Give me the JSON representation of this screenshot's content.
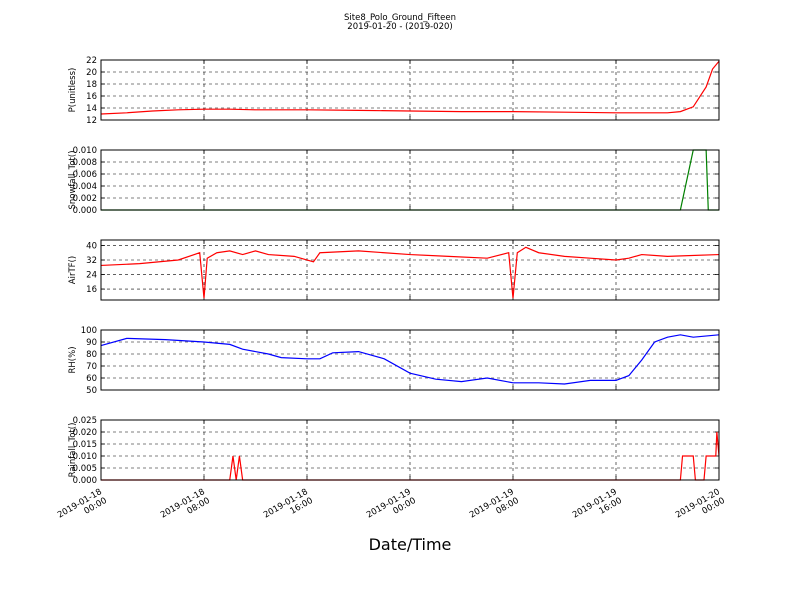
{
  "title": "Site8_Polo_Ground_Fifteen",
  "subtitle": "2019-01-20 - (2019-020)",
  "xlabel": "Date/Time",
  "colors": {
    "red": "#ff0000",
    "green": "#008000",
    "blue": "#0000ff"
  },
  "x_ticks": [
    {
      "line1": "2019-01-18",
      "line2": "00:00"
    },
    {
      "line1": "2019-01-18",
      "line2": "08:00"
    },
    {
      "line1": "2019-01-18",
      "line2": "16:00"
    },
    {
      "line1": "2019-01-19",
      "line2": "00:00"
    },
    {
      "line1": "2019-01-19",
      "line2": "08:00"
    },
    {
      "line1": "2019-01-19",
      "line2": "16:00"
    },
    {
      "line1": "2019-01-20",
      "line2": "00:00"
    }
  ],
  "chart_data": [
    {
      "type": "line",
      "ylabel": "P(unitless)",
      "ylim": [
        12,
        22
      ],
      "yticks": [
        "12",
        "14",
        "16",
        "18",
        "20",
        "22"
      ],
      "x_range": [
        "2019-01-18 00:00",
        "2019-01-20 00:00"
      ],
      "grid": true,
      "color": "#ff0000",
      "points": [
        [
          "2019-01-18 00:00",
          13.0
        ],
        [
          "2019-01-18 02:00",
          13.2
        ],
        [
          "2019-01-18 04:00",
          13.5
        ],
        [
          "2019-01-18 06:00",
          13.7
        ],
        [
          "2019-01-18 08:00",
          13.8
        ],
        [
          "2019-01-18 10:00",
          13.8
        ],
        [
          "2019-01-18 12:00",
          13.7
        ],
        [
          "2019-01-18 16:00",
          13.7
        ],
        [
          "2019-01-18 20:00",
          13.6
        ],
        [
          "2019-01-19 00:00",
          13.5
        ],
        [
          "2019-01-19 04:00",
          13.4
        ],
        [
          "2019-01-19 08:00",
          13.4
        ],
        [
          "2019-01-19 12:00",
          13.3
        ],
        [
          "2019-01-19 16:00",
          13.2
        ],
        [
          "2019-01-19 20:00",
          13.2
        ],
        [
          "2019-01-19 21:00",
          13.4
        ],
        [
          "2019-01-19 22:00",
          14.2
        ],
        [
          "2019-01-19 23:00",
          17.5
        ],
        [
          "2019-01-19 23:30",
          20.5
        ],
        [
          "2019-01-20 00:00",
          21.8
        ]
      ]
    },
    {
      "type": "line",
      "ylabel": "Snowfall_Tot()",
      "ylim": [
        0,
        0.01
      ],
      "yticks": [
        "0.000",
        "0.002",
        "0.004",
        "0.006",
        "0.008",
        "0.010"
      ],
      "x_range": [
        "2019-01-18 00:00",
        "2019-01-20 00:00"
      ],
      "grid": true,
      "color": "#008000",
      "points": [
        [
          "2019-01-18 00:00",
          0
        ],
        [
          "2019-01-19 21:00",
          0
        ],
        [
          "2019-01-19 22:00",
          0.01
        ],
        [
          "2019-01-19 23:00",
          0.01
        ],
        [
          "2019-01-19 23:10",
          0
        ],
        [
          "2019-01-20 00:00",
          0
        ]
      ]
    },
    {
      "type": "line",
      "ylabel": "AirTF()",
      "ylim": [
        10,
        43
      ],
      "yticks": [
        "16",
        "24",
        "32",
        "40"
      ],
      "x_range": [
        "2019-01-18 00:00",
        "2019-01-20 00:00"
      ],
      "grid": true,
      "color": "#ff0000",
      "points": [
        [
          "2019-01-18 00:00",
          29
        ],
        [
          "2019-01-18 03:00",
          30
        ],
        [
          "2019-01-18 06:00",
          32
        ],
        [
          "2019-01-18 07:40",
          36
        ],
        [
          "2019-01-18 08:00",
          11
        ],
        [
          "2019-01-18 08:15",
          33
        ],
        [
          "2019-01-18 09:00",
          36
        ],
        [
          "2019-01-18 10:00",
          37
        ],
        [
          "2019-01-18 11:00",
          35
        ],
        [
          "2019-01-18 12:00",
          37
        ],
        [
          "2019-01-18 13:00",
          35
        ],
        [
          "2019-01-18 15:00",
          34
        ],
        [
          "2019-01-18 16:30",
          31
        ],
        [
          "2019-01-18 17:00",
          36
        ],
        [
          "2019-01-18 20:00",
          37
        ],
        [
          "2019-01-19 00:00",
          35
        ],
        [
          "2019-01-19 03:00",
          34
        ],
        [
          "2019-01-19 06:00",
          33
        ],
        [
          "2019-01-19 07:40",
          36
        ],
        [
          "2019-01-19 08:00",
          11
        ],
        [
          "2019-01-19 08:20",
          36
        ],
        [
          "2019-01-19 09:00",
          39
        ],
        [
          "2019-01-19 10:00",
          36
        ],
        [
          "2019-01-19 12:00",
          34
        ],
        [
          "2019-01-19 14:00",
          33
        ],
        [
          "2019-01-19 16:00",
          32
        ],
        [
          "2019-01-19 17:00",
          33
        ],
        [
          "2019-01-19 18:00",
          35
        ],
        [
          "2019-01-19 20:00",
          34
        ],
        [
          "2019-01-20 00:00",
          35
        ]
      ]
    },
    {
      "type": "line",
      "ylabel": "RH(%)",
      "ylim": [
        50,
        100
      ],
      "yticks": [
        "50",
        "60",
        "70",
        "80",
        "90",
        "100"
      ],
      "x_range": [
        "2019-01-18 00:00",
        "2019-01-20 00:00"
      ],
      "grid": true,
      "color": "#0000ff",
      "points": [
        [
          "2019-01-18 00:00",
          87
        ],
        [
          "2019-01-18 02:00",
          93
        ],
        [
          "2019-01-18 05:00",
          92
        ],
        [
          "2019-01-18 08:00",
          90
        ],
        [
          "2019-01-18 10:00",
          88
        ],
        [
          "2019-01-18 11:00",
          84
        ],
        [
          "2019-01-18 13:00",
          80
        ],
        [
          "2019-01-18 14:00",
          77
        ],
        [
          "2019-01-18 16:00",
          76
        ],
        [
          "2019-01-18 17:00",
          76
        ],
        [
          "2019-01-18 18:00",
          81
        ],
        [
          "2019-01-18 20:00",
          82
        ],
        [
          "2019-01-18 22:00",
          76
        ],
        [
          "2019-01-19 00:00",
          64
        ],
        [
          "2019-01-19 02:00",
          59
        ],
        [
          "2019-01-19 04:00",
          57
        ],
        [
          "2019-01-19 06:00",
          60
        ],
        [
          "2019-01-19 08:00",
          56
        ],
        [
          "2019-01-19 10:00",
          56
        ],
        [
          "2019-01-19 12:00",
          55
        ],
        [
          "2019-01-19 14:00",
          58
        ],
        [
          "2019-01-19 16:00",
          58
        ],
        [
          "2019-01-19 17:00",
          62
        ],
        [
          "2019-01-19 18:00",
          75
        ],
        [
          "2019-01-19 19:00",
          90
        ],
        [
          "2019-01-19 20:00",
          94
        ],
        [
          "2019-01-19 21:00",
          96
        ],
        [
          "2019-01-19 22:00",
          94
        ],
        [
          "2019-01-20 00:00",
          96
        ]
      ]
    },
    {
      "type": "line",
      "ylabel": "Rainfall_Tot()",
      "ylim": [
        0,
        0.025
      ],
      "yticks": [
        "0.000",
        "0.005",
        "0.010",
        "0.015",
        "0.020",
        "0.025"
      ],
      "x_range": [
        "2019-01-18 00:00",
        "2019-01-20 00:00"
      ],
      "grid": true,
      "color": "#ff0000",
      "points": [
        [
          "2019-01-18 00:00",
          0
        ],
        [
          "2019-01-18 10:00",
          0
        ],
        [
          "2019-01-18 10:15",
          0.01
        ],
        [
          "2019-01-18 10:30",
          0
        ],
        [
          "2019-01-18 10:45",
          0.01
        ],
        [
          "2019-01-18 11:00",
          0
        ],
        [
          "2019-01-19 21:00",
          0
        ],
        [
          "2019-01-19 21:10",
          0.01
        ],
        [
          "2019-01-19 22:00",
          0.01
        ],
        [
          "2019-01-19 22:10",
          0
        ],
        [
          "2019-01-19 22:50",
          0
        ],
        [
          "2019-01-19 23:00",
          0.01
        ],
        [
          "2019-01-19 23:45",
          0.01
        ],
        [
          "2019-01-19 23:50",
          0.02
        ],
        [
          "2019-01-20 00:00",
          0.01
        ]
      ]
    }
  ]
}
